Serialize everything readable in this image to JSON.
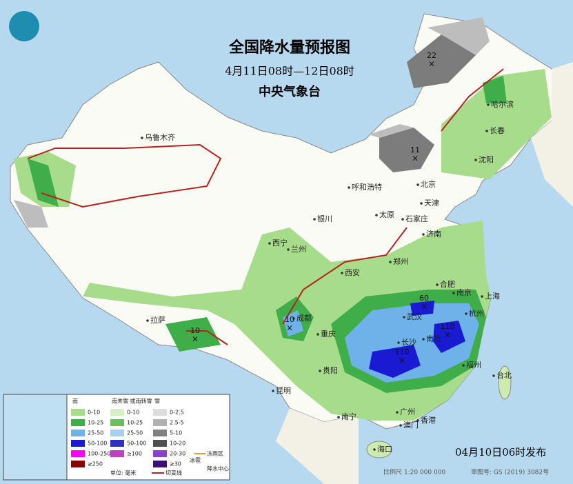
{
  "header": {
    "title": "全国降水量预报图",
    "period": "4月11日08时—12日08时",
    "issuer": "中央气象台"
  },
  "cities": [
    "乌鲁木齐",
    "哈尔滨",
    "长春",
    "沈阳",
    "呼和浩特",
    "北京",
    "天津",
    "太原",
    "石家庄",
    "银川",
    "济南",
    "西宁",
    "兰州",
    "郑州",
    "西安",
    "合肥",
    "南京",
    "上海",
    "武汉",
    "杭州",
    "成都",
    "拉萨",
    "重庆",
    "长沙",
    "南昌",
    "福州",
    "贵阳",
    "台北",
    "昆明",
    "南宁",
    "广州",
    "香港",
    "澳门",
    "海口"
  ],
  "centers": [
    22,
    11,
    10,
    10,
    60,
    110,
    110
  ],
  "legend": {
    "rain": {
      "title": "雨",
      "items": [
        "0-10",
        "10-25",
        "25-50",
        "50-100",
        "100-250",
        "≥250"
      ]
    },
    "sleet": {
      "title": "雨夹雪\n或雨转雪",
      "items": [
        "0-10",
        "10-25",
        "25-50",
        "50-100",
        "≥100"
      ]
    },
    "snow": {
      "title": "雪",
      "items": [
        "0-2.5",
        "2.5-5",
        "5-10",
        "10-20",
        "20-30",
        "≥30"
      ]
    },
    "symbols": [
      "冻雨区",
      "冰雹",
      "降水中心",
      "切变线"
    ],
    "unit": "单位: 毫米"
  },
  "footer": {
    "issued": "04月10日06时发布",
    "scale": "比例尺 1:20 000 000",
    "map_number": "审图号: GS (2019) 3082号"
  }
}
